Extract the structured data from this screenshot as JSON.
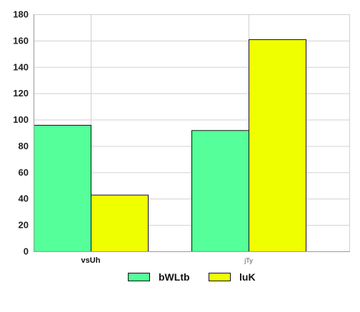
{
  "chart_data": {
    "type": "bar",
    "categories": [
      "vsUh",
      "jTy"
    ],
    "series": [
      {
        "name": "bWLtb",
        "values": [
          96,
          92
        ],
        "color": "#55ff99"
      },
      {
        "name": "luK",
        "values": [
          43,
          161
        ],
        "color": "#f0ff00"
      }
    ],
    "title": "",
    "xlabel": "",
    "ylabel": "",
    "ylim": [
      0,
      180
    ],
    "yticks": [
      0,
      20,
      40,
      60,
      80,
      100,
      120,
      140,
      160,
      180
    ],
    "ytick_labels": [
      "0",
      "20",
      "40",
      "60",
      "80",
      "100",
      "120",
      "140",
      "160",
      "180"
    ],
    "grid": true,
    "legend_position": "bottom"
  }
}
